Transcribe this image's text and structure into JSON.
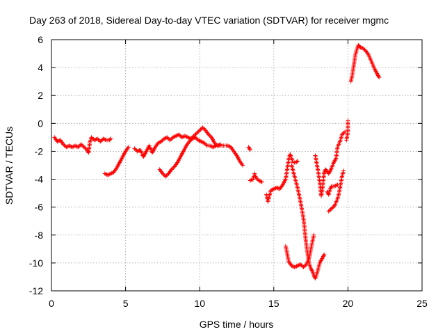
{
  "chart_data": {
    "type": "scatter",
    "title": "Day 263 of 2018, Sidereal Day-to-day VTEC variation (SDTVAR) for receiver mgmc",
    "xlabel": "GPS time / hours",
    "ylabel": "SDTVAR / TECUs",
    "xlim": [
      0,
      25
    ],
    "ylim": [
      -12,
      6
    ],
    "xticks": [
      0,
      5,
      10,
      15,
      20,
      25
    ],
    "yticks": [
      -12,
      -10,
      -8,
      -6,
      -4,
      -2,
      0,
      2,
      4,
      6
    ],
    "grid": true,
    "marker": "+",
    "series": [
      {
        "name": "SDTVAR",
        "color": "#ff0000",
        "segments": [
          [
            [
              0.2,
              -1.0
            ],
            [
              0.4,
              -1.3
            ],
            [
              0.6,
              -1.2
            ],
            [
              0.8,
              -1.5
            ],
            [
              1.0,
              -1.7
            ],
            [
              1.2,
              -1.6
            ],
            [
              1.4,
              -1.7
            ],
            [
              1.6,
              -1.6
            ],
            [
              1.8,
              -1.7
            ],
            [
              2.0,
              -1.5
            ],
            [
              2.2,
              -1.7
            ],
            [
              2.4,
              -1.9
            ],
            [
              2.5,
              -2.1
            ],
            [
              2.6,
              -1.3
            ],
            [
              2.7,
              -1.0
            ],
            [
              2.9,
              -1.2
            ],
            [
              3.1,
              -1.1
            ],
            [
              3.3,
              -1.3
            ],
            [
              3.5,
              -1.1
            ],
            [
              3.7,
              -1.2
            ],
            [
              3.9,
              -1.2
            ],
            [
              4.0,
              -1.1
            ]
          ],
          [
            [
              3.6,
              -3.6
            ],
            [
              3.8,
              -3.7
            ],
            [
              4.0,
              -3.6
            ],
            [
              4.2,
              -3.5
            ],
            [
              4.4,
              -3.2
            ],
            [
              4.6,
              -2.8
            ],
            [
              4.8,
              -2.4
            ],
            [
              5.0,
              -2.0
            ],
            [
              5.2,
              -1.7
            ]
          ],
          [
            [
              5.6,
              -1.8
            ],
            [
              5.8,
              -2.0
            ],
            [
              6.0,
              -1.9
            ],
            [
              6.2,
              -2.4
            ],
            [
              6.4,
              -2.0
            ],
            [
              6.6,
              -1.6
            ],
            [
              6.8,
              -2.1
            ],
            [
              7.0,
              -1.7
            ],
            [
              7.2,
              -1.4
            ],
            [
              7.4,
              -1.3
            ],
            [
              7.6,
              -1.1
            ],
            [
              7.8,
              -1.0
            ],
            [
              8.0,
              -1.2
            ],
            [
              8.2,
              -1.0
            ],
            [
              8.4,
              -0.9
            ],
            [
              8.6,
              -0.8
            ],
            [
              8.8,
              -1.0
            ],
            [
              9.0,
              -0.9
            ],
            [
              9.2,
              -1.0
            ],
            [
              9.4,
              -1.1
            ],
            [
              9.6,
              -0.9
            ],
            [
              9.8,
              -0.7
            ],
            [
              10.0,
              -0.5
            ],
            [
              10.2,
              -0.3
            ],
            [
              10.4,
              -0.5
            ],
            [
              10.6,
              -0.8
            ],
            [
              10.8,
              -1.0
            ],
            [
              11.0,
              -1.4
            ],
            [
              11.2,
              -1.6
            ],
            [
              11.4,
              -1.5
            ]
          ],
          [
            [
              7.3,
              -3.3
            ],
            [
              7.5,
              -3.6
            ],
            [
              7.7,
              -3.8
            ],
            [
              7.9,
              -3.6
            ],
            [
              8.1,
              -3.3
            ],
            [
              8.3,
              -3.1
            ],
            [
              8.5,
              -2.8
            ],
            [
              8.7,
              -2.4
            ],
            [
              8.9,
              -2.0
            ],
            [
              9.1,
              -1.6
            ],
            [
              9.3,
              -1.3
            ],
            [
              9.5,
              -1.1
            ],
            [
              9.7,
              -1.0
            ],
            [
              9.9,
              -1.2
            ],
            [
              10.1,
              -1.3
            ],
            [
              10.3,
              -1.4
            ],
            [
              10.5,
              -1.6
            ],
            [
              10.7,
              -1.6
            ],
            [
              10.9,
              -1.7
            ],
            [
              11.1,
              -1.6
            ],
            [
              11.3,
              -1.6
            ],
            [
              11.5,
              -1.6
            ],
            [
              11.7,
              -1.6
            ],
            [
              11.9,
              -1.6
            ],
            [
              12.1,
              -1.7
            ],
            [
              12.3,
              -2.0
            ],
            [
              12.5,
              -2.3
            ],
            [
              12.7,
              -2.7
            ],
            [
              12.9,
              -3.0
            ]
          ],
          [
            [
              13.3,
              -1.7
            ],
            [
              13.4,
              -1.9
            ]
          ],
          [
            [
              13.4,
              -4.1
            ],
            [
              13.6,
              -4.0
            ],
            [
              13.7,
              -3.6
            ],
            [
              13.8,
              -3.9
            ],
            [
              14.0,
              -4.1
            ],
            [
              14.2,
              -4.2
            ]
          ],
          [
            [
              14.5,
              -5.1
            ],
            [
              14.6,
              -5.6
            ],
            [
              14.7,
              -5.2
            ],
            [
              14.8,
              -4.8
            ],
            [
              15.0,
              -4.7
            ],
            [
              15.2,
              -4.6
            ],
            [
              15.4,
              -4.7
            ],
            [
              15.6,
              -4.4
            ],
            [
              15.8,
              -4.0
            ],
            [
              15.9,
              -3.3
            ],
            [
              16.0,
              -2.6
            ],
            [
              16.1,
              -2.2
            ],
            [
              16.2,
              -2.5
            ],
            [
              16.3,
              -2.8
            ],
            [
              16.5,
              -2.8
            ],
            [
              16.6,
              -2.7
            ]
          ],
          [
            [
              16.2,
              -3.0
            ],
            [
              16.4,
              -3.8
            ],
            [
              16.6,
              -4.6
            ],
            [
              16.8,
              -5.6
            ],
            [
              17.0,
              -6.8
            ],
            [
              17.1,
              -7.8
            ],
            [
              17.2,
              -8.8
            ],
            [
              17.3,
              -9.5
            ],
            [
              17.4,
              -10.1
            ],
            [
              17.5,
              -10.4
            ],
            [
              17.6,
              -10.6
            ],
            [
              17.7,
              -10.9
            ],
            [
              17.8,
              -11.1
            ],
            [
              17.9,
              -10.8
            ],
            [
              18.0,
              -10.4
            ],
            [
              18.1,
              -10.0
            ],
            [
              18.3,
              -9.6
            ],
            [
              18.4,
              -9.4
            ]
          ],
          [
            [
              15.8,
              -8.8
            ],
            [
              15.9,
              -9.3
            ],
            [
              16.0,
              -9.9
            ],
            [
              16.2,
              -10.2
            ],
            [
              16.4,
              -10.3
            ],
            [
              16.6,
              -10.2
            ],
            [
              16.8,
              -10.1
            ],
            [
              17.0,
              -10.3
            ],
            [
              17.2,
              -10.1
            ],
            [
              17.4,
              -9.6
            ],
            [
              17.5,
              -9.0
            ],
            [
              17.6,
              -8.5
            ],
            [
              17.7,
              -8.0
            ]
          ],
          [
            [
              17.8,
              -2.3
            ],
            [
              17.9,
              -2.9
            ],
            [
              18.0,
              -3.5
            ],
            [
              18.1,
              -4.2
            ],
            [
              18.2,
              -5.2
            ],
            [
              18.3,
              -4.5
            ],
            [
              18.4,
              -3.5
            ],
            [
              18.5,
              -3.3
            ],
            [
              18.7,
              -3.6
            ],
            [
              18.9,
              -3.2
            ],
            [
              19.0,
              -2.9
            ],
            [
              19.2,
              -2.5
            ],
            [
              19.3,
              -1.7
            ],
            [
              19.5,
              -1.2
            ],
            [
              19.6,
              -0.8
            ],
            [
              19.8,
              -0.6
            ]
          ],
          [
            [
              18.6,
              -4.9
            ],
            [
              18.7,
              -5.1
            ],
            [
              18.8,
              -4.7
            ],
            [
              18.9,
              -4.5
            ],
            [
              19.1,
              -4.5
            ],
            [
              19.3,
              -4.4
            ]
          ],
          [
            [
              18.7,
              -6.3
            ],
            [
              18.9,
              -6.1
            ],
            [
              19.1,
              -5.9
            ],
            [
              19.3,
              -5.4
            ],
            [
              19.4,
              -5.0
            ],
            [
              19.5,
              -4.4
            ],
            [
              19.6,
              -3.8
            ],
            [
              19.7,
              -3.4
            ]
          ],
          [
            [
              19.9,
              -1.2
            ],
            [
              20.0,
              -0.6
            ],
            [
              20.0,
              0.2
            ]
          ],
          [
            [
              20.2,
              3.0
            ],
            [
              20.3,
              3.5
            ],
            [
              20.4,
              4.2
            ],
            [
              20.5,
              4.9
            ],
            [
              20.6,
              5.3
            ],
            [
              20.7,
              5.6
            ],
            [
              20.8,
              5.5
            ],
            [
              20.9,
              5.4
            ],
            [
              21.0,
              5.4
            ],
            [
              21.2,
              5.2
            ],
            [
              21.4,
              4.9
            ],
            [
              21.6,
              4.4
            ],
            [
              21.8,
              3.9
            ],
            [
              22.0,
              3.5
            ],
            [
              22.1,
              3.3
            ]
          ]
        ]
      }
    ]
  }
}
